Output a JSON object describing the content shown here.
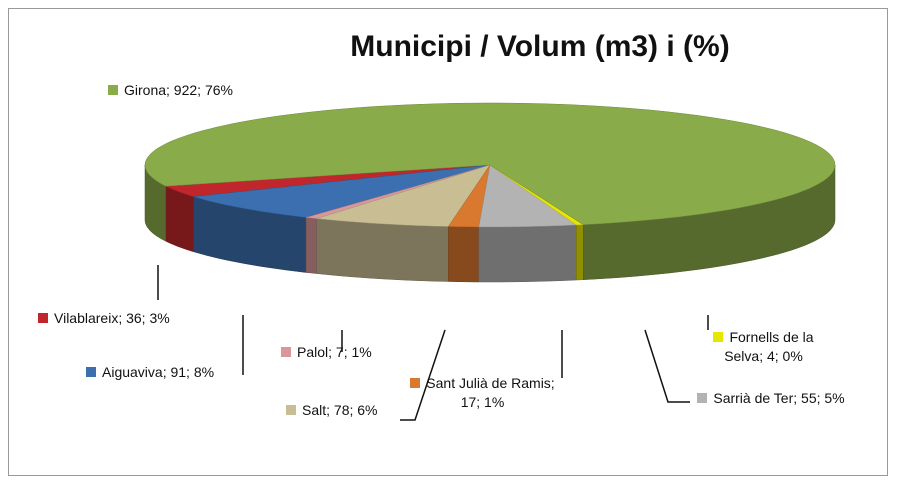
{
  "chart_data": {
    "type": "pie3d",
    "title": "Municipi / Volum (m3) i (%)",
    "categories": [
      "Vilablareix",
      "Aiguaviva",
      "Palol",
      "Salt",
      "Sant Julià de Ramis",
      "Sarrià de Ter",
      "Fornells de la Selva",
      "Girona"
    ],
    "values": [
      36,
      91,
      7,
      78,
      17,
      55,
      4,
      922
    ],
    "value_labels": [
      "Vilablareix; 36; 3%",
      "Aiguaviva; 91; 8%",
      "Palol; 7; 1%",
      "Salt; 78; 6%",
      "Sant Julià de Ramis; 17; 1%",
      "Sarrià de Ter; 55; 5%",
      "Fornells de la Selva; 4; 0%",
      "Girona; 922; 76%"
    ],
    "colors": [
      "#c0262b",
      "#3b6fb0",
      "#d9979b",
      "#c9bd93",
      "#d9782f",
      "#b3b3b3",
      "#e6e600",
      "#8aab4a"
    ]
  }
}
